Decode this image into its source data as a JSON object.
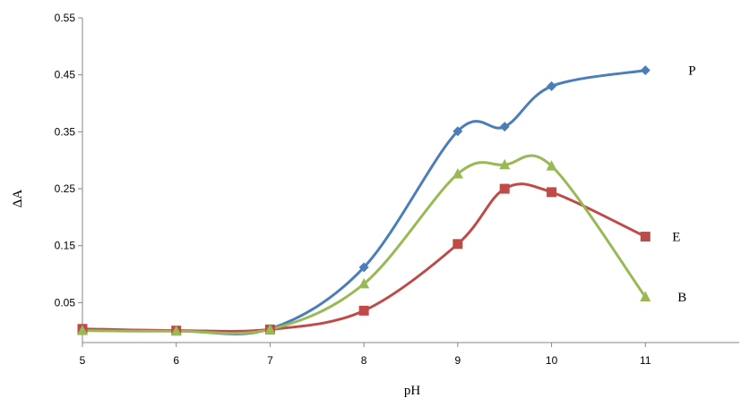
{
  "chart_data": {
    "type": "line",
    "xlabel": "pH",
    "ylabel": "ΔA",
    "xlim": [
      5,
      12
    ],
    "ylim": [
      -0.02,
      0.55
    ],
    "yticks": [
      0.05,
      0.15,
      0.25,
      0.35,
      0.45,
      0.55
    ],
    "xticks": [
      5,
      6,
      7,
      8,
      9,
      10,
      11
    ],
    "grid": false,
    "legend": "inline labels at line ends",
    "series": [
      {
        "name": "P",
        "color": "#4a7ebb",
        "marker": "diamond",
        "x": [
          5,
          6,
          7,
          8,
          9,
          9.5,
          10,
          11
        ],
        "y": [
          0.003,
          0.001,
          0.004,
          0.112,
          0.351,
          0.359,
          0.43,
          0.458
        ]
      },
      {
        "name": "E",
        "color": "#be4b48",
        "marker": "square",
        "x": [
          5,
          6,
          7,
          8,
          9,
          9.5,
          10,
          11
        ],
        "y": [
          0.004,
          0.001,
          0.003,
          0.036,
          0.153,
          0.25,
          0.244,
          0.166
        ]
      },
      {
        "name": "B",
        "color": "#98b954",
        "marker": "triangle",
        "x": [
          5,
          6,
          7,
          8,
          9,
          9.5,
          10,
          11
        ],
        "y": [
          0.001,
          0.0,
          0.003,
          0.083,
          0.276,
          0.292,
          0.29,
          0.06
        ]
      }
    ]
  }
}
